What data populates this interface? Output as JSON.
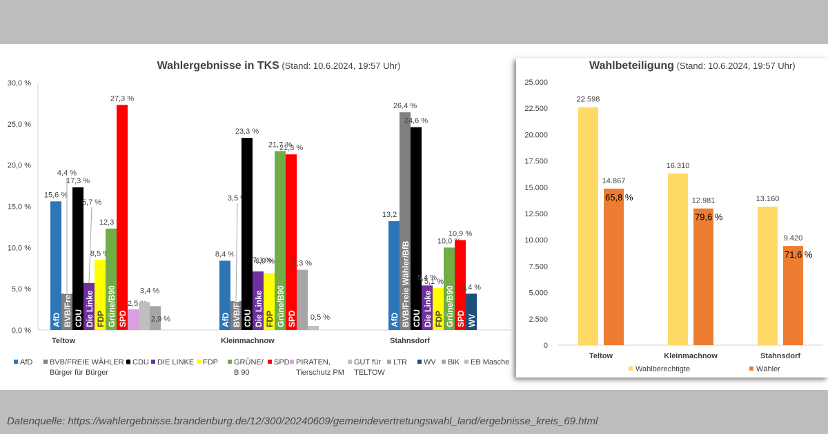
{
  "source_text": "Datenquelle: https://wahlergebnisse.brandenburg.de/12/300/20240609/gemeindevertretungswahl_land/ergebnisse_kreis_69.html",
  "chart_data": [
    {
      "type": "bar",
      "title": "Wahlergebnisse in TKS",
      "subtitle": "(Stand: 10.6.2024, 19:57 Uhr)",
      "categories": [
        "Teltow",
        "Kleinmachnow",
        "Stahnsdorf"
      ],
      "ylim": [
        0,
        30
      ],
      "y_ticks": [
        "0,0 %",
        "5,0 %",
        "10,0 %",
        "15,0 %",
        "20,0 %",
        "25,0 %",
        "30,0 %"
      ],
      "grid": false,
      "legend_position": "bottom",
      "series": [
        {
          "name": "AfD",
          "color": "#2e75b6",
          "values": [
            15.6,
            8.4,
            13.2
          ],
          "labels": [
            "15,6 %",
            "8,4 %",
            "13,2 %"
          ],
          "bar_text": "AfD"
        },
        {
          "name": "BVB/FREIE WÄHLER & Bürger für Bürger",
          "legend_lines": [
            "BVB/FREIE WÄHLER &",
            "Bürger für Bürger"
          ],
          "color": "#7f7f7f",
          "values": [
            4.4,
            3.5,
            26.4
          ],
          "labels": [
            "4,4 %",
            "3,5 %",
            "26,4 %"
          ],
          "bar_text": "BVB/Freie Wähler/BfB"
        },
        {
          "name": "CDU",
          "color": "#000000",
          "values": [
            17.3,
            23.3,
            24.6
          ],
          "labels": [
            "17,3 %",
            "23,3 %",
            "24,6 %"
          ],
          "bar_text": "CDU"
        },
        {
          "name": "DIE LINKE",
          "color": "#7030a0",
          "values": [
            5.7,
            7.1,
            5.4
          ],
          "labels": [
            "5,7 %",
            "7,1 %",
            "5,4 %"
          ],
          "bar_text": "Die Linke"
        },
        {
          "name": "FDP",
          "color": "#ffff00",
          "values": [
            8.5,
            6.9,
            5.1
          ],
          "labels": [
            "8,5 %",
            "6,9 %",
            "5,1 %"
          ],
          "bar_text": "FDP"
        },
        {
          "name": "GRÜNE/ B 90",
          "legend_lines": [
            "GRÜNE/",
            "B 90"
          ],
          "color": "#70ad47",
          "values": [
            12.3,
            21.7,
            10.0
          ],
          "labels": [
            "12,3 %",
            "21,7 %",
            "10,0 %"
          ],
          "bar_text": "Grüne/B90"
        },
        {
          "name": "SPD",
          "color": "#ff0000",
          "values": [
            27.3,
            21.3,
            10.9
          ],
          "labels": [
            "27,3 %",
            "21,3 %",
            "10,9 %"
          ],
          "bar_text": "SPD"
        },
        {
          "name": "PIRATEN, Tierschutz PM",
          "legend_lines": [
            "PIRATEN,",
            "Tierschutz PM"
          ],
          "color": "#d9a0e0",
          "values": [
            2.5,
            null,
            null
          ],
          "labels": [
            "2,5 %",
            "",
            ""
          ],
          "bar_text": ""
        },
        {
          "name": "GUT für TELTOW",
          "legend_lines": [
            "GUT für",
            "TELTOW"
          ],
          "color": "#bfbfbf",
          "values": [
            3.4,
            null,
            null
          ],
          "labels": [
            "3,4 %",
            "",
            ""
          ],
          "bar_text": ""
        },
        {
          "name": "LTR",
          "color": "#a6a6a6",
          "values": [
            2.9,
            null,
            null
          ],
          "labels": [
            "2,9 %",
            "",
            ""
          ],
          "bar_text": ""
        },
        {
          "name": "WV",
          "color": "#1f4e79",
          "values": [
            null,
            null,
            4.4
          ],
          "labels": [
            "",
            "",
            "4,4 %"
          ],
          "bar_text": "WV"
        },
        {
          "name": "BiK",
          "color": "#a6a6a6",
          "values": [
            null,
            7.3,
            null
          ],
          "labels": [
            "",
            "7,3 %",
            ""
          ],
          "bar_text": ""
        },
        {
          "name": "EB Masche",
          "color": "#bfbfbf",
          "values": [
            null,
            0.5,
            null
          ],
          "labels": [
            "",
            "0,5 %",
            ""
          ],
          "bar_text": ""
        }
      ]
    },
    {
      "type": "bar",
      "title": "Wahlbeteiligung",
      "subtitle": "(Stand: 10.6.2024, 19:57 Uhr)",
      "categories": [
        "Teltow",
        "Kleinmachnow",
        "Stahnsdorf"
      ],
      "ylim": [
        0,
        25000
      ],
      "y_ticks": [
        "0",
        "2.500",
        "5.000",
        "7.500",
        "10.000",
        "12.500",
        "15.000",
        "17.500",
        "20.000",
        "22.500",
        "25.000"
      ],
      "grid": false,
      "legend_position": "bottom",
      "series": [
        {
          "name": "Wahlberechtigte",
          "color": "#ffd966",
          "values": [
            22598,
            16310,
            13160
          ],
          "labels": [
            "22.598",
            "16.310",
            "13.160"
          ]
        },
        {
          "name": "Wähler",
          "color": "#ed7d31",
          "values": [
            14867,
            12981,
            9420
          ],
          "labels": [
            "14.867",
            "12.981",
            "9.420"
          ],
          "inner_labels": [
            "65,8 %",
            "79,6 %",
            "71,6 %"
          ]
        }
      ]
    }
  ]
}
